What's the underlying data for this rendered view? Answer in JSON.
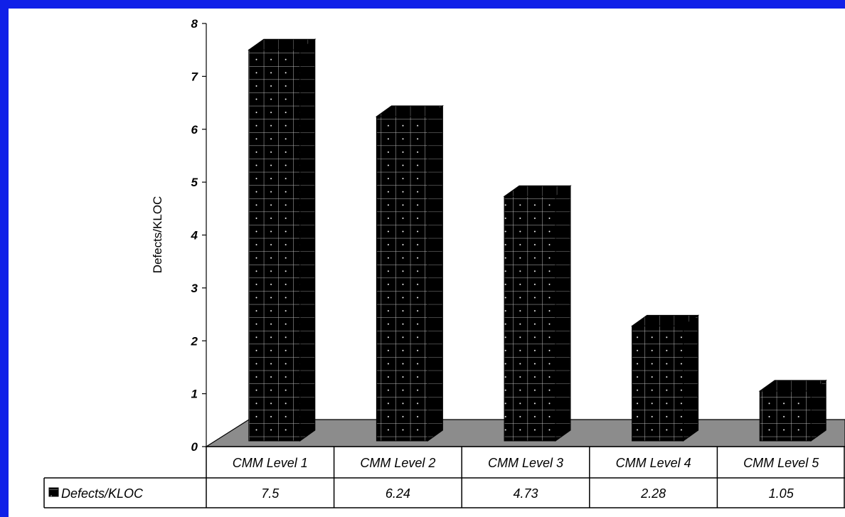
{
  "chart_data": {
    "type": "bar",
    "categories": [
      "CMM Level 1",
      "CMM Level 2",
      "CMM Level 3",
      "CMM Level 4",
      "CMM Level 5"
    ],
    "series": [
      {
        "name": "Defects/KLOC",
        "values": [
          7.5,
          6.24,
          4.73,
          2.28,
          1.05
        ]
      }
    ],
    "value_labels": [
      "7.5",
      "6.24",
      "4.73",
      "2.28",
      "1.05"
    ],
    "title": "",
    "xlabel": "",
    "ylabel": "Defects/KLOC",
    "ylim": [
      0,
      8
    ],
    "yticks": [
      "0",
      "1",
      "2",
      "3",
      "4",
      "5",
      "6",
      "7",
      "8"
    ],
    "grid": false,
    "legend_placement": "data-table-left",
    "bar_pattern": "black-grid-3d",
    "colors": {
      "bar": "#000000",
      "floor": "#8c8c8c",
      "background": "#ffffff",
      "frame": "#1020e8"
    }
  }
}
